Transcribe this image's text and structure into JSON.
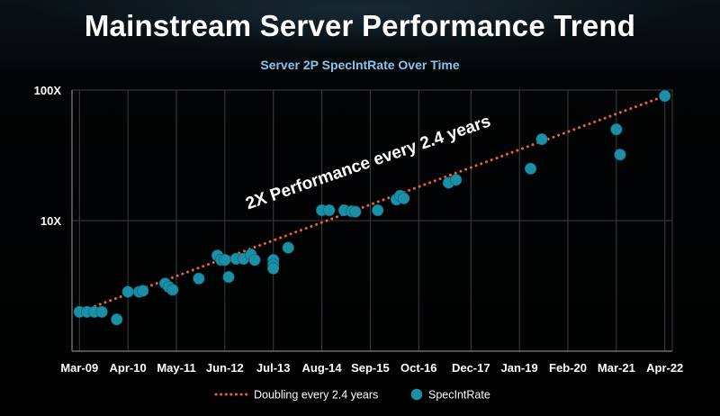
{
  "slide": {
    "title": "Mainstream Server Performance Trend"
  },
  "chart_data": {
    "type": "scatter",
    "title": "Server 2P SpecIntRate Over Time",
    "xlabel": "",
    "ylabel": "",
    "x_ticks": [
      "Mar-09",
      "Apr-10",
      "May-11",
      "Jun-12",
      "Jul-13",
      "Aug-14",
      "Sep-15",
      "Oct-16",
      "Dec-17",
      "Jan-19",
      "Feb-20",
      "Mar-21",
      "Apr-22"
    ],
    "xlim": [
      "2009-01",
      "2022-06"
    ],
    "y_scale": "log",
    "y_ticks": [
      "10X",
      "100X"
    ],
    "ylim": [
      1.0,
      100
    ],
    "grid": "vertical",
    "legend": "bottom",
    "colors": {
      "trend": "#e8622c",
      "points": "#1a8fa6"
    },
    "series": [
      {
        "name": "Doubling every 2.4 years",
        "kind": "line",
        "style": "dotted",
        "points": [
          {
            "x": "2009-03",
            "y": 2.0
          },
          {
            "x": "2022-04",
            "y": 90
          }
        ]
      },
      {
        "name": "SpecIntRate",
        "kind": "scatter",
        "points": [
          {
            "x": "2009-03",
            "y": 2.0
          },
          {
            "x": "2009-05",
            "y": 2.0
          },
          {
            "x": "2009-07",
            "y": 2.0
          },
          {
            "x": "2009-09",
            "y": 2.0
          },
          {
            "x": "2010-01",
            "y": 1.75
          },
          {
            "x": "2010-04",
            "y": 2.85
          },
          {
            "x": "2010-07",
            "y": 2.85
          },
          {
            "x": "2010-08",
            "y": 2.9
          },
          {
            "x": "2011-02",
            "y": 3.3
          },
          {
            "x": "2011-03",
            "y": 3.1
          },
          {
            "x": "2011-04",
            "y": 2.95
          },
          {
            "x": "2011-11",
            "y": 3.6
          },
          {
            "x": "2012-04",
            "y": 5.4
          },
          {
            "x": "2012-05",
            "y": 5.0
          },
          {
            "x": "2012-06",
            "y": 5.0
          },
          {
            "x": "2012-07",
            "y": 3.7
          },
          {
            "x": "2012-09",
            "y": 5.1
          },
          {
            "x": "2012-11",
            "y": 5.1
          },
          {
            "x": "2013-01",
            "y": 5.5
          },
          {
            "x": "2013-02",
            "y": 5.0
          },
          {
            "x": "2013-07",
            "y": 5.0
          },
          {
            "x": "2013-07",
            "y": 4.6
          },
          {
            "x": "2013-07",
            "y": 4.3
          },
          {
            "x": "2013-11",
            "y": 6.2
          },
          {
            "x": "2014-08",
            "y": 12.0
          },
          {
            "x": "2014-10",
            "y": 12.0
          },
          {
            "x": "2015-02",
            "y": 12.0
          },
          {
            "x": "2015-04",
            "y": 11.8
          },
          {
            "x": "2015-05",
            "y": 11.7
          },
          {
            "x": "2015-11",
            "y": 12.0
          },
          {
            "x": "2016-04",
            "y": 14.5
          },
          {
            "x": "2016-05",
            "y": 15.5
          },
          {
            "x": "2016-06",
            "y": 14.8
          },
          {
            "x": "2017-06",
            "y": 19.5
          },
          {
            "x": "2017-08",
            "y": 20.5
          },
          {
            "x": "2019-04",
            "y": 25.0
          },
          {
            "x": "2019-07",
            "y": 42.0
          },
          {
            "x": "2021-03",
            "y": 50.0
          },
          {
            "x": "2021-04",
            "y": 32.0
          },
          {
            "x": "2022-04",
            "y": 90.0
          }
        ]
      }
    ],
    "annotations": [
      {
        "text": "2X Performance every 2.4 years"
      }
    ]
  }
}
